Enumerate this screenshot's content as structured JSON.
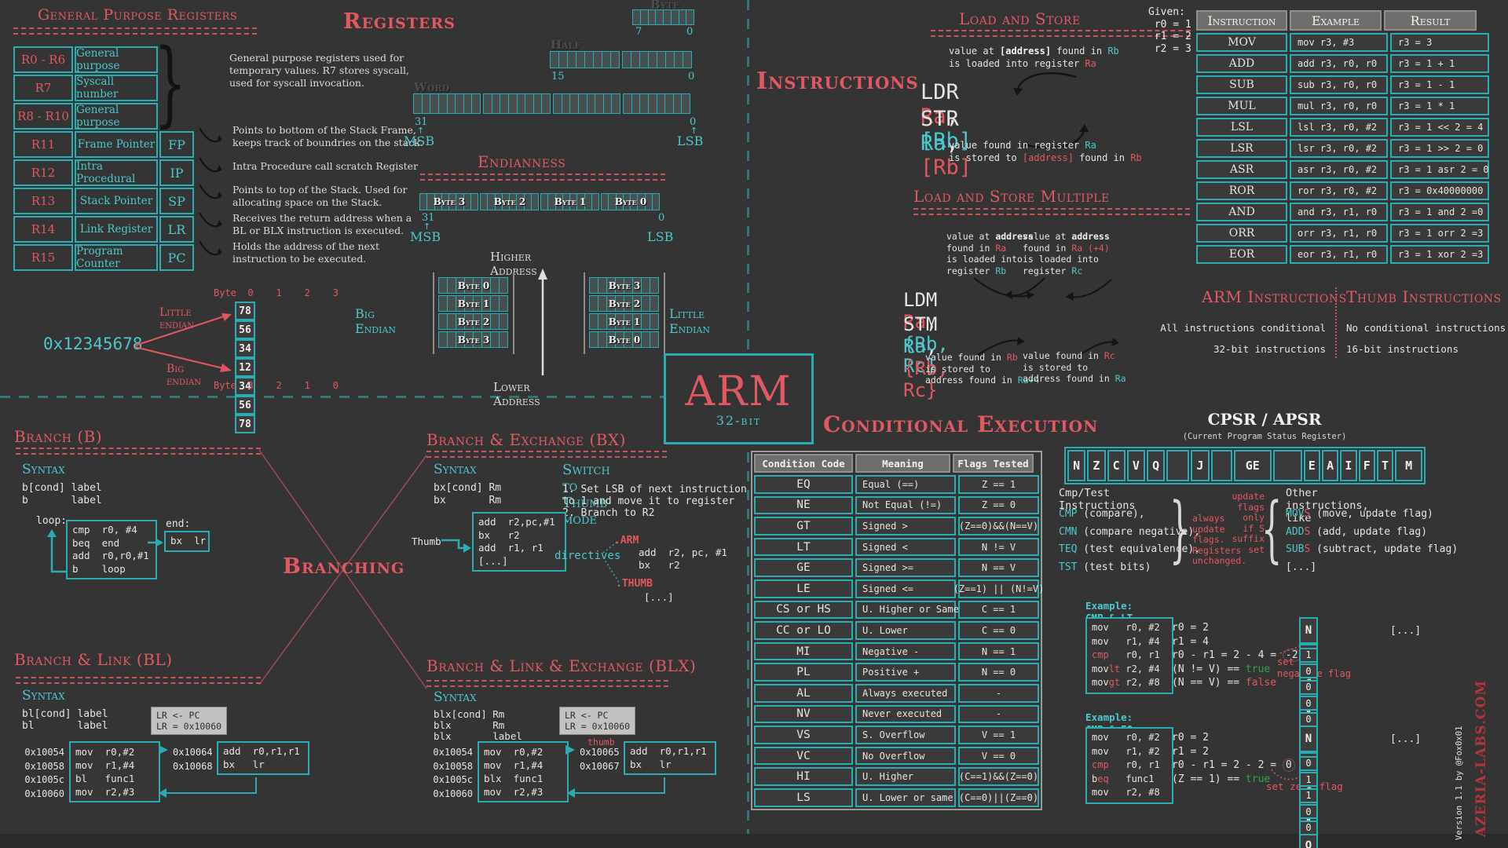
{
  "gpr": {
    "title": "General Purpose Registers",
    "rows": [
      {
        "name": "R0 - R6",
        "desc": "General purpose",
        "acr": null
      },
      {
        "name": "R7",
        "desc": "Syscall number",
        "acr": null
      },
      {
        "name": "R8 - R10",
        "desc": "General purpose",
        "acr": null
      },
      {
        "name": "R11",
        "desc": "Frame Pointer",
        "acr": "FP"
      },
      {
        "name": "R12",
        "desc": "Intra Procedural",
        "acr": "IP"
      },
      {
        "name": "R13",
        "desc": "Stack Pointer",
        "acr": "SP"
      },
      {
        "name": "R14",
        "desc": "Link Register",
        "acr": "LR"
      },
      {
        "name": "R15",
        "desc": "Program Counter",
        "acr": "PC"
      }
    ],
    "brace_note": [
      "General purpose registers used for",
      "temporary values. R7 stores syscall,",
      "used for syscall invocation."
    ],
    "notes": [
      [
        "Points to bottom of the Stack Frame,",
        "keeps track of boundries on the stack."
      ],
      [
        "Intra Procedure call scratch Register"
      ],
      [
        "Points to top of the Stack. Used for",
        "allocating space on the Stack."
      ],
      [
        "Receives the return address when a",
        "BL or BLX instruction is executed."
      ],
      [
        "Holds the address of the next",
        "instruction to be executed."
      ]
    ]
  },
  "registers": {
    "title": "Registers",
    "byte_label": "Byte",
    "halfword_label": "Half word",
    "word_label": "Word",
    "bit7": "7",
    "bit0": "0",
    "bit15": "15",
    "bit31": "31",
    "msb": "MSB",
    "lsb": "LSB",
    "arrow_up": "↑"
  },
  "endianness": {
    "title": "Endianness",
    "word_bytes": [
      "Byte 3",
      "Byte 2",
      "Byte 1",
      "Byte 0"
    ],
    "bit31": "31",
    "bit0": "0",
    "msb": "MSB",
    "lsb": "LSB",
    "arrow_up": "↑",
    "higher": "Higher Address",
    "lower": "Lower Address",
    "big_label": "Big Endian",
    "big_bytes": [
      "Byte 0",
      "Byte 1",
      "Byte 2",
      "Byte 3"
    ],
    "little_label": "Little Endian",
    "little_bytes": [
      "Byte 3",
      "Byte 2",
      "Byte 1",
      "Byte 0"
    ]
  },
  "endian_example": {
    "value": "0x12345678",
    "little_label": "Little endian",
    "byte_header_top": "Byte  0    1    2    3",
    "little_cells": [
      "78",
      "56",
      "34",
      "12"
    ],
    "big_label": "Big endian",
    "big_cells": [
      "12",
      "34",
      "56",
      "78"
    ],
    "byte_header_bottom": "Byte  3    2    1    0"
  },
  "instructions_heading": "Instructions",
  "load_store": {
    "title": "Load and Store",
    "top_note": [
      [
        [
          "value at ",
          "w"
        ],
        [
          "[address]",
          "b"
        ],
        [
          " found in ",
          "w"
        ],
        [
          "Rb",
          "c"
        ]
      ],
      [
        [
          "is loaded into register ",
          "w"
        ],
        [
          "Ra",
          "r"
        ]
      ]
    ],
    "ldr": [
      [
        "LDR  ",
        "w"
      ],
      [
        "Ra",
        "r"
      ],
      [
        ", ",
        "w"
      ],
      [
        "[Rb]",
        "c"
      ]
    ],
    "str": [
      [
        "STR  ",
        "w"
      ],
      [
        "Ra",
        "c"
      ],
      [
        ", ",
        "w"
      ],
      [
        "[Rb]",
        "r"
      ]
    ],
    "bottom_note": [
      [
        [
          "value found in register ",
          "w"
        ],
        [
          "Ra",
          "c"
        ]
      ],
      [
        [
          "is stored to ",
          "w"
        ],
        [
          "[address]",
          "r"
        ],
        [
          " found in ",
          "w"
        ],
        [
          "Rb",
          "r"
        ]
      ]
    ]
  },
  "given": {
    "lines": [
      "Given:",
      " r0 = 1",
      " r1 = 2",
      " r2 = 3"
    ]
  },
  "insn_table": {
    "headers": [
      "Instruction",
      "Example",
      "Result"
    ],
    "rows": [
      [
        "MOV",
        "mov r3, #3",
        "r3 = 3"
      ],
      [
        "ADD",
        "add r3, r0, r0",
        "r3 = 1 + 1"
      ],
      [
        "SUB",
        "sub r3, r0, r0",
        "r3 = 1 - 1"
      ],
      [
        "MUL",
        "mul r3, r0, r0",
        "r3 = 1 * 1"
      ],
      [
        "LSL",
        "lsl r3, r0, #2",
        "r3 = 1 << 2 = 4"
      ],
      [
        "LSR",
        "lsr r3, r0, #2",
        "r3 = 1 >> 2 = 0"
      ],
      [
        "ASR",
        "asr r3, r0, #2",
        "r3 = 1 asr 2 = 0"
      ],
      [
        "ROR",
        "ror r3, r0, #2",
        "r3 = 0x40000000"
      ],
      [
        "AND",
        "and r3, r1, r0",
        "r3 = 1 and 2 =0"
      ],
      [
        "ORR",
        "orr r3, r1, r0",
        "r3 = 1 orr 2 =3"
      ],
      [
        "EOR",
        "eor r3, r1, r0",
        "r3 = 1 xor 2 =3"
      ]
    ]
  },
  "lsm": {
    "title": "Load and Store Multiple",
    "note_top_left": [
      [
        [
          "value at ",
          "w"
        ],
        [
          "address",
          "b"
        ]
      ],
      [
        [
          "found in ",
          "w"
        ],
        [
          "Ra",
          "r"
        ]
      ],
      [
        [
          "is loaded into",
          "w"
        ]
      ],
      [
        [
          "register ",
          "w"
        ],
        [
          "Rb",
          "c"
        ]
      ]
    ],
    "note_top_right": [
      [
        [
          "value at ",
          "w"
        ],
        [
          "address",
          "b"
        ]
      ],
      [
        [
          "found in ",
          "w"
        ],
        [
          "Ra (+4)",
          "r"
        ]
      ],
      [
        [
          "is loaded into",
          "w"
        ]
      ],
      [
        [
          "register ",
          "w"
        ],
        [
          "Rc",
          "c"
        ]
      ]
    ],
    "ldm": [
      [
        "LDM  ",
        "w"
      ],
      [
        "Ra",
        "r"
      ],
      [
        ", ",
        "w"
      ],
      [
        "{Rb, Rc}",
        "c"
      ]
    ],
    "stm": [
      [
        "STM  ",
        "w"
      ],
      [
        "Ra",
        "c"
      ],
      [
        ", ",
        "w"
      ],
      [
        "{Rb, Rc}",
        "r"
      ]
    ],
    "note_bottom_left": [
      [
        [
          "value found in ",
          "w"
        ],
        [
          "Rb",
          "r"
        ]
      ],
      [
        [
          "is stored to",
          "w"
        ]
      ],
      [
        [
          "address found in ",
          "w"
        ],
        [
          "Ra+4",
          "c"
        ]
      ]
    ],
    "note_bottom_right": [
      [
        [
          "value found in ",
          "w"
        ],
        [
          "Rc",
          "r"
        ]
      ],
      [
        [
          "is stored to",
          "w"
        ]
      ],
      [
        [
          "address found in ",
          "w"
        ],
        [
          "Ra",
          "c"
        ]
      ]
    ]
  },
  "arm_thumb": {
    "arm_title": "ARM Instructions",
    "arm_lines": [
      "All instructions conditional",
      "32-bit instructions"
    ],
    "thumb_title": "Thumb Instructions",
    "thumb_lines": [
      "No conditional instructions",
      "16-bit instructions"
    ]
  },
  "logo": {
    "name": "ARM",
    "sub": "32-bit"
  },
  "conditional": {
    "title": "Conditional Execution",
    "table": {
      "headers": [
        "Condition Code",
        "Meaning",
        "Flags Tested"
      ],
      "rows": [
        [
          "EQ",
          "Equal (==)",
          "Z == 1"
        ],
        [
          "NE",
          "Not Equal (!=)",
          "Z == 0"
        ],
        [
          "GT",
          "Signed >",
          "(Z==0)&&(N==V)"
        ],
        [
          "LT",
          "Signed <",
          "N != V"
        ],
        [
          "GE",
          "Signed >=",
          "N == V"
        ],
        [
          "LE",
          "Signed <=",
          "(Z==1) || (N!=V)"
        ],
        [
          "CS or HS",
          "U. Higher or Same",
          "C == 1"
        ],
        [
          "CC or LO",
          "U. Lower",
          "C == 0"
        ],
        [
          "MI",
          "Negative -",
          "N == 1"
        ],
        [
          "PL",
          "Positive +",
          "N == 0"
        ],
        [
          "AL",
          "Always executed",
          "-"
        ],
        [
          "NV",
          "Never executed",
          "-"
        ],
        [
          "VS",
          "S. Overflow",
          "V == 1"
        ],
        [
          "VC",
          "No Overflow",
          "V == 0"
        ],
        [
          "HI",
          "U. Higher",
          "(C==1)&&(Z==0)"
        ],
        [
          "LS",
          "U. Lower or same",
          "(C==0)||(Z==0)"
        ]
      ]
    }
  },
  "cpsr": {
    "title": "CPSR / APSR",
    "subtitle": "(Current Program Status Register)",
    "bits": [
      {
        "label": "N",
        "w": 1
      },
      {
        "label": "Z",
        "w": 1
      },
      {
        "label": "C",
        "w": 1
      },
      {
        "label": "V",
        "w": 1
      },
      {
        "label": "Q",
        "w": 1
      },
      {
        "label": "",
        "w": 1.3
      },
      {
        "label": "J",
        "w": 1
      },
      {
        "label": "",
        "w": 1.2
      },
      {
        "label": "GE",
        "w": 2.3
      },
      {
        "label": "",
        "w": 1.7
      },
      {
        "label": "E",
        "w": 0.9
      },
      {
        "label": "A",
        "w": 0.9
      },
      {
        "label": "I",
        "w": 0.9
      },
      {
        "label": "F",
        "w": 0.9
      },
      {
        "label": "T",
        "w": 0.9
      },
      {
        "label": "M",
        "w": 1.6
      }
    ],
    "cmp_title": "Cmp/Test Instructions",
    "cmp_lines": [
      [
        [
          "CMP",
          "c"
        ],
        [
          " (compare),",
          "w"
        ]
      ],
      [
        [
          "CMN",
          "c"
        ],
        [
          " (compare negative),",
          "w"
        ]
      ],
      [
        [
          "TEQ",
          "c"
        ],
        [
          " (test equivalence),",
          "w"
        ]
      ],
      [
        [
          "TST",
          "c"
        ],
        [
          " (test bits)",
          "w"
        ]
      ]
    ],
    "always_note": "always\nupdate\nflags.\nRegisters\nunchanged.",
    "s_note": "update\nflags\nonly\nif S\nsuffix\nset",
    "other_title": "Other instructions, like",
    "other_lines": [
      [
        [
          "MOV",
          "c"
        ],
        [
          "S",
          "r"
        ],
        [
          " (move, update flag)",
          "w"
        ]
      ],
      [
        [
          "ADD",
          "c"
        ],
        [
          "S",
          "r"
        ],
        [
          " (add, update flag)",
          "w"
        ]
      ],
      [
        [
          "SUB",
          "c"
        ],
        [
          "S",
          "r"
        ],
        [
          " (subtract, update flag)",
          "w"
        ]
      ],
      [
        [
          "[...]",
          "w"
        ]
      ]
    ]
  },
  "example_lt": {
    "title": "Example: CMP & LT",
    "code": [
      [
        [
          "mov   r0, #2",
          "w"
        ]
      ],
      [
        [
          "mov   r1, #4",
          "w"
        ]
      ],
      [
        [
          "cmp",
          "r"
        ],
        [
          "   r0, r1",
          "w"
        ]
      ],
      [
        [
          "mov",
          "w"
        ],
        [
          "lt",
          "r"
        ],
        [
          " r2, #4",
          "w"
        ]
      ],
      [
        [
          "mov",
          "w"
        ],
        [
          "gt",
          "r"
        ],
        [
          " r2, #8",
          "w"
        ]
      ]
    ],
    "result": [
      [
        [
          "r0 = 2",
          "w"
        ]
      ],
      [
        [
          "r1 = 4",
          "w"
        ]
      ],
      [
        [
          "r0 - r1 = 2 - 4 = ",
          "w"
        ],
        [
          "-2",
          "circ"
        ]
      ],
      [
        [
          "(N != V) == ",
          "w"
        ],
        [
          "true",
          "g"
        ]
      ],
      [
        [
          "(N == V) == ",
          "w"
        ],
        [
          "false",
          "r"
        ]
      ]
    ],
    "flag_note": [
      "set",
      "negative flag"
    ],
    "flags_header": [
      "N",
      "Z",
      "C",
      "V",
      "Q"
    ],
    "flags_values": [
      "1",
      "0",
      "0",
      "0",
      "0"
    ],
    "more": "[...]"
  },
  "example_eq": {
    "title": "Example: CMP & EQ",
    "code": [
      [
        [
          "mov   r0, #2",
          "w"
        ]
      ],
      [
        [
          "mov   r1, #2",
          "w"
        ]
      ],
      [
        [
          "cmp",
          "r"
        ],
        [
          "   r0, r1",
          "w"
        ]
      ],
      [
        [
          "b",
          "w"
        ],
        [
          "eq",
          "r"
        ],
        [
          "   func1",
          "w"
        ]
      ],
      [
        [
          "mov   r2, #8",
          "w"
        ]
      ]
    ],
    "result": [
      [
        [
          "r0 = 2",
          "w"
        ]
      ],
      [
        [
          "r1 = 2",
          "w"
        ]
      ],
      [
        [
          "r0 - r1 = 2 - 2 = ",
          "w"
        ],
        [
          "0",
          "circ"
        ]
      ],
      [
        [
          "(Z == 1) == ",
          "w"
        ],
        [
          "true",
          "g"
        ]
      ]
    ],
    "flag_note": [
      "set zero flag"
    ],
    "flags_header": [
      "N",
      "Z",
      "C",
      "V",
      "Q"
    ],
    "flags_values": [
      "0",
      "1",
      "1",
      "0",
      "0"
    ],
    "more": "[...]"
  },
  "branching_heading": "Branching",
  "branch_b": {
    "title": "Branch (B)",
    "syntax_label": "Syntax",
    "syntax_lines": [
      "b[cond] label",
      "b       label"
    ],
    "loop_label": "loop:",
    "loop_code": [
      "cmp  r0, #4",
      "beq  end",
      "add  r0,r0,#1",
      "b    loop"
    ],
    "end_label": "end:",
    "end_code": [
      "bx  lr"
    ]
  },
  "branch_bx": {
    "title": "Branch & Exchange (BX)",
    "syntax_label": "Syntax",
    "syntax_lines": [
      "bx[cond] Rm",
      "bx       Rm"
    ],
    "switch_title": "Switch to Thumb mode",
    "switch_steps": [
      "1. Set LSB of next instruction",
      "to 1 and move it to register",
      "2. Branch to R2"
    ],
    "thumb_label": "Thumb",
    "code": [
      "add  r2,pc,#1",
      "bx   r2",
      "add  r1, r1",
      "[...]"
    ],
    "directives_label": "directives",
    "arm_directive": ".ARM",
    "arm_code": [
      "add  r2, pc, #1",
      "bx   r2"
    ],
    "thumb_directive": ".THUMB",
    "thumb_code": [
      "[...]"
    ]
  },
  "branch_bl": {
    "title": "Branch & Link  (BL)",
    "syntax_label": "Syntax",
    "syntax_lines": [
      "bl[cond] label",
      "bl       label"
    ],
    "addresses": [
      "0x10054",
      "0x10058",
      "0x1005c",
      "0x10060"
    ],
    "code": [
      "mov  r0,#2",
      "mov  r1,#4",
      "bl   func1",
      "mov  r2,#3"
    ],
    "callout": "LR <- PC\nLR = 0x10060",
    "target_addresses": [
      "0x10064",
      "0x10068"
    ],
    "target_code": [
      "add  r0,r1,r1",
      "bx   lr"
    ]
  },
  "branch_blx": {
    "title": "Branch & Link & Exchange (BLX)",
    "syntax_label": "Syntax",
    "syntax_lines": [
      "blx[cond] Rm",
      "blx       Rm",
      "blx       label"
    ],
    "addresses": [
      "0x10054",
      "0x10058",
      "0x1005c",
      "0x10060"
    ],
    "code": [
      "mov  r0,#2",
      "mov  r1,#4",
      "blx  func1",
      "mov  r2,#3"
    ],
    "callout": "LR <- PC\nLR = 0x10060",
    "thumb_label": "thumb",
    "target_addresses": [
      "0x10065",
      "0x10067"
    ],
    "target_code": [
      "add  r0,r1,r1",
      "bx   lr"
    ]
  },
  "footer": {
    "version": "Version 1.1 by @Fox0x01",
    "site": "AZERIA-LABS.COM"
  }
}
